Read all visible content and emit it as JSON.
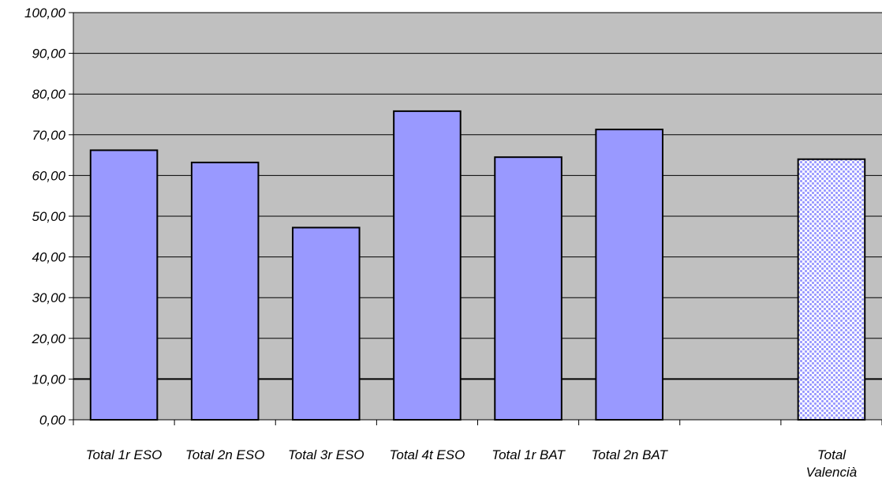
{
  "chart_data": {
    "type": "bar",
    "title": "",
    "xlabel": "",
    "ylabel": "",
    "ylim": [
      0,
      100
    ],
    "ytick_step": 10,
    "ytick_labels": [
      "0,00",
      "10,00",
      "20,00",
      "30,00",
      "40,00",
      "50,00",
      "60,00",
      "70,00",
      "80,00",
      "90,00",
      "100,00"
    ],
    "grid": true,
    "legend": "none",
    "categories": [
      [
        "Total 1r ESO"
      ],
      [
        "Total 2n ESO"
      ],
      [
        "Total 3r ESO"
      ],
      [
        "Total 4t ESO"
      ],
      [
        "Total 1r BAT"
      ],
      [
        "Total 2n BAT"
      ],
      [
        ""
      ],
      [
        "Total",
        "Valencià"
      ]
    ],
    "values": [
      66.2,
      63.2,
      47.2,
      75.8,
      64.5,
      71.3,
      null,
      64.0
    ],
    "bar_styles": [
      "solid",
      "solid",
      "solid",
      "solid",
      "solid",
      "solid",
      "none",
      "hatched"
    ],
    "colors": {
      "plot_background": "#c0c0c0",
      "bar_fill": "#9999ff",
      "hatch_fill": "#9999ff",
      "hatch_background": "#ffffff",
      "bar_stroke": "#000000",
      "gridline": "#000000"
    }
  }
}
